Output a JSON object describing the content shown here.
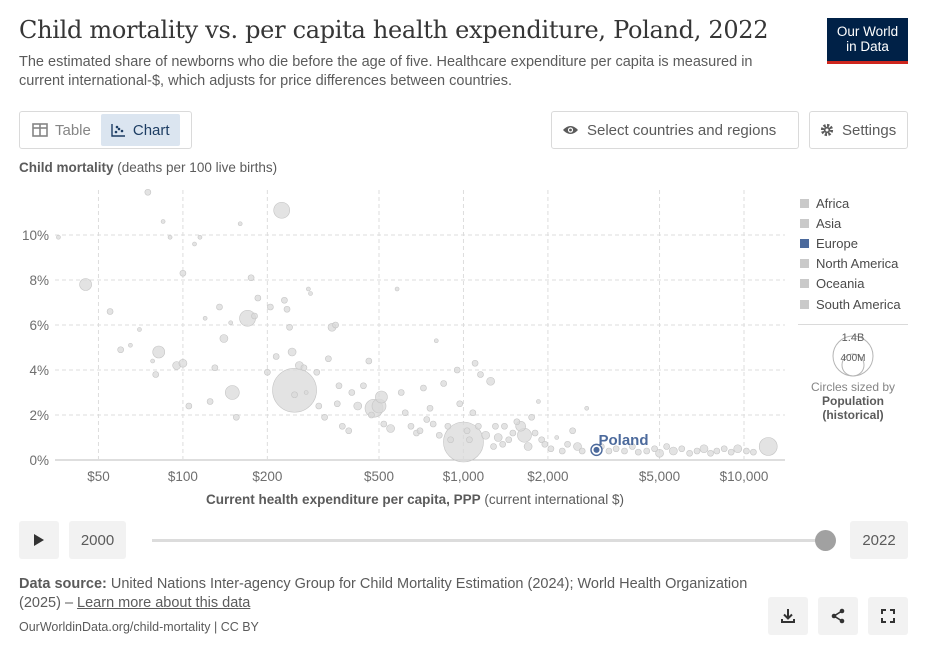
{
  "header": {
    "title": "Child mortality vs. per capita health expenditure, Poland, 2022",
    "subtitle": "The estimated share of newborns who die before the age of five. Healthcare expenditure per capita is measured in current international-$, which adjusts for price differences between countries.",
    "logo_line1": "Our World",
    "logo_line2": "in Data"
  },
  "controls": {
    "tab_table": "Table",
    "tab_chart": "Chart",
    "select_label": "Select countries and regions",
    "settings_label": "Settings"
  },
  "timeline": {
    "start_year": "2000",
    "end_year": "2022",
    "progress": 1.0
  },
  "footer": {
    "source_label": "Data source:",
    "source_text": "United Nations Inter-agency Group for Child Mortality Estimation (2024); World Health Organization (2025) – ",
    "learn_more": "Learn more about this data",
    "url": "OurWorldinData.org/child-mortality | CC BY"
  },
  "chart_data": {
    "type": "scatter",
    "ylabel_bold": "Child mortality",
    "ylabel_rest": " (deaths per 100 live births)",
    "xlabel_bold": "Current health expenditure per capita, PPP",
    "xlabel_rest": " (current international $)",
    "x_scale": "log",
    "xlim": [
      35,
      14000
    ],
    "ylim": [
      0,
      12
    ],
    "x_ticks": [
      {
        "value": 50,
        "label": "$50"
      },
      {
        "value": 100,
        "label": "$100"
      },
      {
        "value": 200,
        "label": "$200"
      },
      {
        "value": 500,
        "label": "$500"
      },
      {
        "value": 1000,
        "label": "$1,000"
      },
      {
        "value": 2000,
        "label": "$2,000"
      },
      {
        "value": 5000,
        "label": "$5,000"
      },
      {
        "value": 10000,
        "label": "$10,000"
      }
    ],
    "y_ticks": [
      {
        "value": 0,
        "label": "0%"
      },
      {
        "value": 2,
        "label": "2%"
      },
      {
        "value": 4,
        "label": "4%"
      },
      {
        "value": 6,
        "label": "6%"
      },
      {
        "value": 8,
        "label": "8%"
      },
      {
        "value": 10,
        "label": "10%"
      }
    ],
    "grid": true,
    "legend_position": "right",
    "legend": [
      {
        "name": "Africa",
        "color": "#c9c9c9"
      },
      {
        "name": "Asia",
        "color": "#c9c9c9"
      },
      {
        "name": "Europe",
        "color": "#4c6a9c"
      },
      {
        "name": "North America",
        "color": "#c9c9c9"
      },
      {
        "name": "Oceania",
        "color": "#c9c9c9"
      },
      {
        "name": "South America",
        "color": "#c9c9c9"
      }
    ],
    "size_legend": {
      "max_label": "1.4B",
      "min_label": "400M",
      "caption": "Circles sized by",
      "variable_line1": "Population",
      "variable_line2": "(historical)"
    },
    "highlight": {
      "name": "Poland",
      "x": 2980,
      "y": 0.45,
      "color": "#4c6a9c"
    },
    "points": [
      [
        36,
        9.9,
        2
      ],
      [
        45,
        7.8,
        6
      ],
      [
        55,
        6.6,
        3
      ],
      [
        60,
        4.9,
        3
      ],
      [
        65,
        5.1,
        2
      ],
      [
        70,
        5.8,
        2
      ],
      [
        75,
        11.9,
        3
      ],
      [
        78,
        4.4,
        2
      ],
      [
        80,
        3.8,
        3
      ],
      [
        82,
        4.8,
        6
      ],
      [
        85,
        10.6,
        2
      ],
      [
        90,
        9.9,
        2
      ],
      [
        95,
        4.2,
        4
      ],
      [
        100,
        4.3,
        4
      ],
      [
        100,
        8.3,
        3
      ],
      [
        105,
        2.4,
        3
      ],
      [
        110,
        9.6,
        2
      ],
      [
        115,
        9.9,
        2
      ],
      [
        120,
        6.3,
        2
      ],
      [
        125,
        2.6,
        3
      ],
      [
        130,
        4.1,
        3
      ],
      [
        135,
        6.8,
        3
      ],
      [
        140,
        5.4,
        4
      ],
      [
        148,
        6.1,
        2
      ],
      [
        155,
        1.9,
        3
      ],
      [
        150,
        3.0,
        7
      ],
      [
        160,
        10.5,
        2
      ],
      [
        170,
        6.3,
        8
      ],
      [
        175,
        8.1,
        3
      ],
      [
        180,
        6.4,
        3
      ],
      [
        185,
        7.2,
        3
      ],
      [
        200,
        3.9,
        3
      ],
      [
        205,
        6.8,
        3
      ],
      [
        215,
        4.6,
        3
      ],
      [
        225,
        11.1,
        8
      ],
      [
        230,
        7.1,
        3
      ],
      [
        235,
        6.7,
        3
      ],
      [
        240,
        5.9,
        3
      ],
      [
        245,
        4.8,
        4
      ],
      [
        250,
        2.9,
        3
      ],
      [
        250,
        3.1,
        22
      ],
      [
        260,
        4.2,
        4
      ],
      [
        270,
        4.1,
        3
      ],
      [
        275,
        3.0,
        2
      ],
      [
        280,
        7.6,
        2
      ],
      [
        285,
        7.4,
        2
      ],
      [
        300,
        3.9,
        3
      ],
      [
        305,
        2.4,
        3
      ],
      [
        320,
        1.9,
        3
      ],
      [
        330,
        4.5,
        3
      ],
      [
        340,
        5.9,
        4
      ],
      [
        350,
        6.0,
        3
      ],
      [
        355,
        2.5,
        3
      ],
      [
        360,
        3.3,
        3
      ],
      [
        370,
        1.5,
        3
      ],
      [
        390,
        1.3,
        3
      ],
      [
        400,
        3.0,
        3
      ],
      [
        420,
        2.4,
        4
      ],
      [
        440,
        3.3,
        3
      ],
      [
        460,
        4.4,
        3
      ],
      [
        470,
        2.0,
        3
      ],
      [
        480,
        2.3,
        9
      ],
      [
        500,
        2.4,
        7
      ],
      [
        510,
        2.8,
        6
      ],
      [
        520,
        1.6,
        3
      ],
      [
        550,
        1.4,
        4
      ],
      [
        580,
        7.6,
        2
      ],
      [
        600,
        3.0,
        3
      ],
      [
        620,
        2.1,
        3
      ],
      [
        650,
        1.5,
        3
      ],
      [
        680,
        1.2,
        3
      ],
      [
        700,
        1.3,
        3
      ],
      [
        720,
        3.2,
        3
      ],
      [
        740,
        1.8,
        3
      ],
      [
        760,
        2.3,
        3
      ],
      [
        780,
        1.6,
        3
      ],
      [
        800,
        5.3,
        2
      ],
      [
        820,
        1.1,
        3
      ],
      [
        850,
        3.4,
        3
      ],
      [
        880,
        1.5,
        3
      ],
      [
        900,
        0.9,
        3
      ],
      [
        950,
        4.0,
        3
      ],
      [
        970,
        2.5,
        3
      ],
      [
        1000,
        0.8,
        20
      ],
      [
        1030,
        1.3,
        3
      ],
      [
        1050,
        0.9,
        3
      ],
      [
        1080,
        2.1,
        3
      ],
      [
        1100,
        4.3,
        3
      ],
      [
        1130,
        1.5,
        3
      ],
      [
        1150,
        3.8,
        3
      ],
      [
        1200,
        1.1,
        4
      ],
      [
        1250,
        3.5,
        4
      ],
      [
        1280,
        0.6,
        3
      ],
      [
        1300,
        1.5,
        3
      ],
      [
        1330,
        1.0,
        4
      ],
      [
        1380,
        0.7,
        3
      ],
      [
        1400,
        1.5,
        3
      ],
      [
        1450,
        0.9,
        3
      ],
      [
        1500,
        1.2,
        3
      ],
      [
        1550,
        1.7,
        3
      ],
      [
        1600,
        1.5,
        5
      ],
      [
        1650,
        1.1,
        7
      ],
      [
        1700,
        0.6,
        4
      ],
      [
        1750,
        1.9,
        3
      ],
      [
        1800,
        1.2,
        3
      ],
      [
        1850,
        2.6,
        2
      ],
      [
        1900,
        0.9,
        3
      ],
      [
        1950,
        0.7,
        3
      ],
      [
        2050,
        0.5,
        3
      ],
      [
        2150,
        1.0,
        2
      ],
      [
        2250,
        0.4,
        3
      ],
      [
        2350,
        0.7,
        3
      ],
      [
        2450,
        1.3,
        3
      ],
      [
        2550,
        0.6,
        4
      ],
      [
        2650,
        0.4,
        3
      ],
      [
        2750,
        2.3,
        2
      ],
      [
        3100,
        0.6,
        3
      ],
      [
        3300,
        0.4,
        3
      ],
      [
        3500,
        0.5,
        3
      ],
      [
        3750,
        0.4,
        3
      ],
      [
        4000,
        0.6,
        3
      ],
      [
        4200,
        0.35,
        3
      ],
      [
        4500,
        0.4,
        3
      ],
      [
        4800,
        0.5,
        3
      ],
      [
        5000,
        0.3,
        4
      ],
      [
        5300,
        0.6,
        3
      ],
      [
        5600,
        0.4,
        4
      ],
      [
        6000,
        0.5,
        3
      ],
      [
        6400,
        0.3,
        3
      ],
      [
        6800,
        0.4,
        3
      ],
      [
        7200,
        0.5,
        4
      ],
      [
        7600,
        0.3,
        3
      ],
      [
        8000,
        0.4,
        3
      ],
      [
        8500,
        0.5,
        3
      ],
      [
        9000,
        0.35,
        3
      ],
      [
        9500,
        0.5,
        4
      ],
      [
        10200,
        0.4,
        3
      ],
      [
        10800,
        0.35,
        3
      ],
      [
        12200,
        0.6,
        9
      ]
    ]
  }
}
